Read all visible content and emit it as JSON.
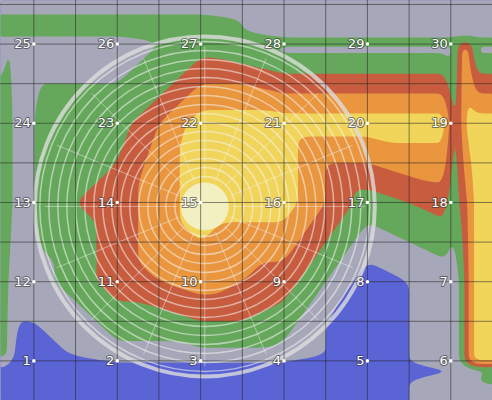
{
  "chart_data": {
    "type": "heatmap",
    "labels": [
      [
        "25",
        "26",
        "27",
        "28",
        "29",
        "30"
      ],
      [
        "24",
        "23",
        "22",
        "21",
        "20",
        "19"
      ],
      [
        "13",
        "14",
        "15",
        "16",
        "17",
        "18"
      ],
      [
        "12",
        "11",
        "10",
        "9",
        "8",
        "7"
      ],
      [
        "1",
        "2",
        "3",
        "4",
        "5",
        "6"
      ]
    ],
    "cells": [
      [
        1,
        1,
        2,
        1,
        1,
        1
      ],
      [
        2,
        2,
        5,
        5,
        5,
        5
      ],
      [
        2,
        3,
        5,
        5,
        2,
        3
      ],
      [
        1,
        3,
        4,
        3,
        0,
        1
      ],
      [
        0,
        1,
        1,
        1,
        0,
        1
      ]
    ],
    "grid": true
  }
}
